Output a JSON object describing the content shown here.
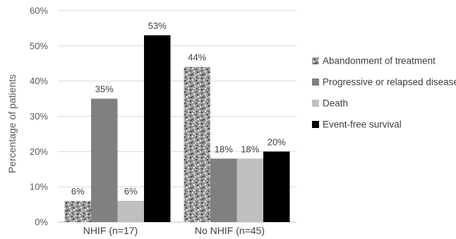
{
  "chart_data": {
    "type": "bar",
    "title": "",
    "xlabel": "",
    "ylabel": "Percentage of patients",
    "ylim": [
      0,
      60
    ],
    "yticks": [
      0,
      10,
      20,
      30,
      40,
      50,
      60
    ],
    "tick_suffix": "%",
    "grid": true,
    "legend_position": "right",
    "categories": [
      "NHIF (n=17)",
      "No NHIF (n=45)"
    ],
    "series": [
      {
        "name": "Abandonment of treatment",
        "values": [
          6,
          44
        ],
        "labels": [
          "6%",
          "44%"
        ],
        "color": "#a6a6a6",
        "pattern": "noise"
      },
      {
        "name": "Progressive or relapsed disease",
        "values": [
          35,
          18
        ],
        "labels": [
          "35%",
          "18%"
        ],
        "color": "#808080"
      },
      {
        "name": "Death",
        "values": [
          6,
          18
        ],
        "labels": [
          "6%",
          "18%"
        ],
        "color": "#bfbfbf"
      },
      {
        "name": "Event-free survival",
        "values": [
          53,
          20
        ],
        "labels": [
          "53%",
          "20%"
        ],
        "color": "#000000"
      }
    ]
  }
}
